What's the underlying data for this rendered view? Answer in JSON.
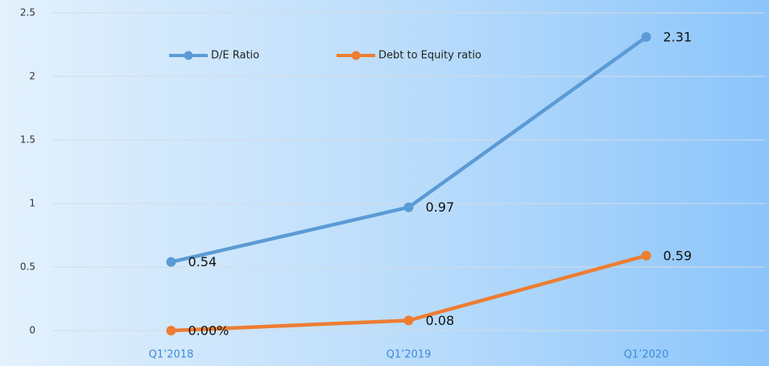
{
  "chart_data": {
    "type": "line",
    "categories": [
      "Q1’2018",
      "Q1’2019",
      "Q1’2020"
    ],
    "series": [
      {
        "name": "D/E Ratio",
        "color": "#5b9bd5",
        "values": [
          0.54,
          0.97,
          2.31
        ]
      },
      {
        "name": "Debt to Equity ratio",
        "color": "#ed7d31",
        "values": [
          0,
          0.08,
          0.59
        ],
        "value_labels": [
          "0.00%",
          "0.08",
          "0.59"
        ]
      }
    ],
    "ylim": [
      0,
      2.5
    ],
    "yticks": [
      0,
      0.5,
      1,
      1.5,
      2,
      2.5
    ],
    "grid": true,
    "legend": "top"
  }
}
